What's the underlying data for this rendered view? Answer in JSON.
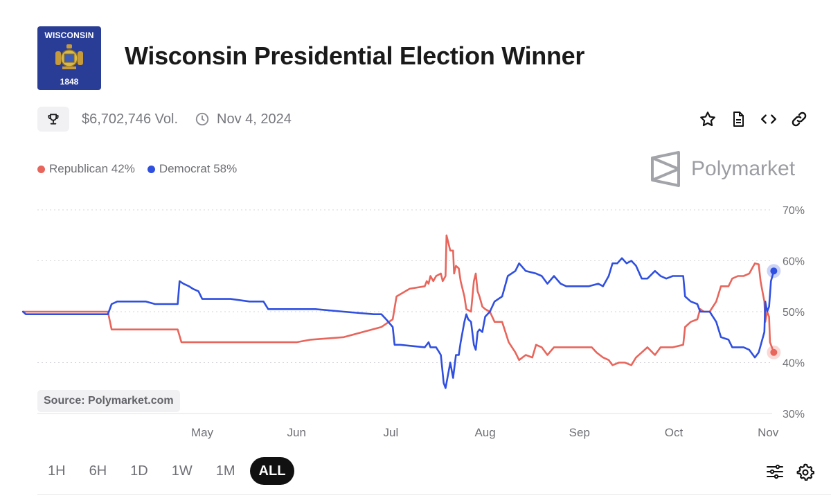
{
  "header": {
    "flag_top_text": "WISCONSIN",
    "flag_bottom_text": "1848",
    "title": "Wisconsin Presidential Election Winner"
  },
  "meta": {
    "volume": "$6,702,746 Vol.",
    "date": "Nov 4, 2024"
  },
  "legend": [
    {
      "label": "Republican 42%",
      "color": "#e8655b"
    },
    {
      "label": "Democrat 58%",
      "color": "#2f4fe0"
    }
  ],
  "brand": "Polymarket",
  "source": "Source: Polymarket.com",
  "timeframes": [
    "1H",
    "6H",
    "1D",
    "1W",
    "1M",
    "ALL"
  ],
  "active_timeframe": "ALL",
  "chart_data": {
    "type": "line",
    "title": "Wisconsin Presidential Election Winner",
    "xlabel": "",
    "ylabel": "",
    "ylim": [
      30,
      70
    ],
    "yticks": [
      "70%",
      "60%",
      "50%",
      "40%",
      "30%"
    ],
    "xticks": [
      "May",
      "Jun",
      "Jul",
      "Aug",
      "Sep",
      "Oct",
      "Nov"
    ],
    "xtick_positions": [
      1,
      2,
      3,
      4,
      5,
      6,
      7
    ],
    "xlim": [
      -0.9,
      7.06
    ],
    "series": [
      {
        "name": "Republican",
        "color": "#e8655b",
        "points": [
          [
            -0.9,
            50
          ],
          [
            0,
            50
          ],
          [
            0.04,
            46.5
          ],
          [
            0.74,
            46.5
          ],
          [
            0.78,
            44
          ],
          [
            1,
            44
          ],
          [
            1.1,
            44
          ],
          [
            1.5,
            44
          ],
          [
            2,
            44
          ],
          [
            2.15,
            44.5
          ],
          [
            2.5,
            45
          ],
          [
            2.9,
            47
          ],
          [
            3.02,
            48.5
          ],
          [
            3.06,
            53
          ],
          [
            3.2,
            54.5
          ],
          [
            3.36,
            55
          ],
          [
            3.38,
            56
          ],
          [
            3.4,
            55.5
          ],
          [
            3.42,
            57
          ],
          [
            3.45,
            56
          ],
          [
            3.48,
            57
          ],
          [
            3.53,
            57.5
          ],
          [
            3.55,
            56
          ],
          [
            3.58,
            57
          ],
          [
            3.59,
            65
          ],
          [
            3.63,
            62
          ],
          [
            3.66,
            62
          ],
          [
            3.67,
            57.5
          ],
          [
            3.69,
            59
          ],
          [
            3.72,
            58.5
          ],
          [
            3.74,
            56
          ],
          [
            3.78,
            53
          ],
          [
            3.8,
            50.5
          ],
          [
            3.85,
            50
          ],
          [
            3.88,
            56
          ],
          [
            3.9,
            57.5
          ],
          [
            3.92,
            54
          ],
          [
            3.94,
            53
          ],
          [
            3.97,
            51
          ],
          [
            4,
            50.5
          ],
          [
            4.05,
            50
          ],
          [
            4.1,
            48
          ],
          [
            4.18,
            48
          ],
          [
            4.25,
            44
          ],
          [
            4.32,
            42
          ],
          [
            4.36,
            40.5
          ],
          [
            4.43,
            41.5
          ],
          [
            4.5,
            41
          ],
          [
            4.54,
            43.5
          ],
          [
            4.6,
            43
          ],
          [
            4.66,
            41.5
          ],
          [
            4.73,
            43
          ],
          [
            4.85,
            43
          ],
          [
            4.95,
            43
          ],
          [
            5.13,
            43
          ],
          [
            5.18,
            42
          ],
          [
            5.25,
            41
          ],
          [
            5.31,
            40.5
          ],
          [
            5.35,
            39.5
          ],
          [
            5.42,
            40
          ],
          [
            5.48,
            40
          ],
          [
            5.55,
            39.5
          ],
          [
            5.6,
            41
          ],
          [
            5.66,
            42
          ],
          [
            5.72,
            43
          ],
          [
            5.8,
            41.5
          ],
          [
            5.86,
            43
          ],
          [
            5.92,
            43
          ],
          [
            5.99,
            43
          ],
          [
            6.1,
            43.5
          ],
          [
            6.12,
            47
          ],
          [
            6.18,
            48
          ],
          [
            6.25,
            48.5
          ],
          [
            6.28,
            50.5
          ],
          [
            6.32,
            50
          ],
          [
            6.38,
            50
          ],
          [
            6.45,
            52
          ],
          [
            6.5,
            55
          ],
          [
            6.58,
            55
          ],
          [
            6.62,
            56.5
          ],
          [
            6.68,
            57
          ],
          [
            6.74,
            57
          ],
          [
            6.8,
            57.5
          ],
          [
            6.86,
            59.5
          ],
          [
            6.9,
            59.3
          ],
          [
            6.92,
            56
          ],
          [
            6.94,
            54
          ],
          [
            6.96,
            52
          ],
          [
            6.97,
            48
          ],
          [
            6.99,
            50
          ],
          [
            7.01,
            49
          ],
          [
            7.02,
            44
          ],
          [
            7.06,
            42
          ]
        ]
      },
      {
        "name": "Democrat",
        "color": "#2f4fe0",
        "points": [
          [
            -0.9,
            50
          ],
          [
            -0.87,
            49.5
          ],
          [
            0,
            49.5
          ],
          [
            0.04,
            51.5
          ],
          [
            0.1,
            52
          ],
          [
            0.4,
            52
          ],
          [
            0.5,
            51.5
          ],
          [
            0.74,
            51.5
          ],
          [
            0.76,
            56
          ],
          [
            0.8,
            55.5
          ],
          [
            0.86,
            55
          ],
          [
            0.9,
            54.5
          ],
          [
            0.96,
            54
          ],
          [
            1,
            52.5
          ],
          [
            1.1,
            52.5
          ],
          [
            1.3,
            52.5
          ],
          [
            1.5,
            52
          ],
          [
            1.65,
            52
          ],
          [
            1.7,
            50.5
          ],
          [
            2,
            50.5
          ],
          [
            2.2,
            50.5
          ],
          [
            2.5,
            50
          ],
          [
            2.82,
            49.5
          ],
          [
            2.9,
            49.5
          ],
          [
            2.95,
            48.5
          ],
          [
            3.02,
            47
          ],
          [
            3.04,
            43.5
          ],
          [
            3.1,
            43.5
          ],
          [
            3.36,
            43
          ],
          [
            3.4,
            44
          ],
          [
            3.42,
            43
          ],
          [
            3.48,
            43
          ],
          [
            3.53,
            41.5
          ],
          [
            3.56,
            36
          ],
          [
            3.58,
            35
          ],
          [
            3.61,
            38
          ],
          [
            3.63,
            40
          ],
          [
            3.66,
            37
          ],
          [
            3.69,
            41.5
          ],
          [
            3.72,
            41.5
          ],
          [
            3.74,
            44
          ],
          [
            3.78,
            48
          ],
          [
            3.8,
            49.5
          ],
          [
            3.82,
            48.5
          ],
          [
            3.85,
            48
          ],
          [
            3.88,
            43.5
          ],
          [
            3.9,
            42.5
          ],
          [
            3.92,
            46
          ],
          [
            3.94,
            46.5
          ],
          [
            3.97,
            46
          ],
          [
            4,
            49
          ],
          [
            4.05,
            50
          ],
          [
            4.1,
            52
          ],
          [
            4.18,
            53
          ],
          [
            4.24,
            57
          ],
          [
            4.32,
            58
          ],
          [
            4.36,
            59.5
          ],
          [
            4.43,
            58
          ],
          [
            4.54,
            57.5
          ],
          [
            4.6,
            57
          ],
          [
            4.66,
            55.5
          ],
          [
            4.73,
            57
          ],
          [
            4.8,
            55.5
          ],
          [
            4.86,
            55
          ],
          [
            4.95,
            55
          ],
          [
            5.1,
            55
          ],
          [
            5.2,
            55.5
          ],
          [
            5.25,
            55
          ],
          [
            5.31,
            57
          ],
          [
            5.35,
            59.5
          ],
          [
            5.4,
            59.5
          ],
          [
            5.45,
            60.5
          ],
          [
            5.5,
            59.5
          ],
          [
            5.55,
            60
          ],
          [
            5.6,
            59
          ],
          [
            5.66,
            56.5
          ],
          [
            5.72,
            56.5
          ],
          [
            5.8,
            58
          ],
          [
            5.86,
            57
          ],
          [
            5.92,
            56.5
          ],
          [
            5.99,
            57
          ],
          [
            6.1,
            57
          ],
          [
            6.12,
            53
          ],
          [
            6.18,
            52
          ],
          [
            6.25,
            51.5
          ],
          [
            6.28,
            50
          ],
          [
            6.32,
            50
          ],
          [
            6.38,
            50
          ],
          [
            6.45,
            48
          ],
          [
            6.5,
            45
          ],
          [
            6.58,
            44.5
          ],
          [
            6.62,
            43
          ],
          [
            6.68,
            43
          ],
          [
            6.74,
            43
          ],
          [
            6.8,
            42.5
          ],
          [
            6.86,
            41
          ],
          [
            6.9,
            42
          ],
          [
            6.93,
            44
          ],
          [
            6.96,
            46
          ],
          [
            6.97,
            52
          ],
          [
            6.99,
            50
          ],
          [
            7.01,
            51
          ],
          [
            7.03,
            56
          ],
          [
            7.06,
            58
          ]
        ]
      }
    ],
    "end_values": {
      "Republican": 42,
      "Democrat": 58
    }
  }
}
